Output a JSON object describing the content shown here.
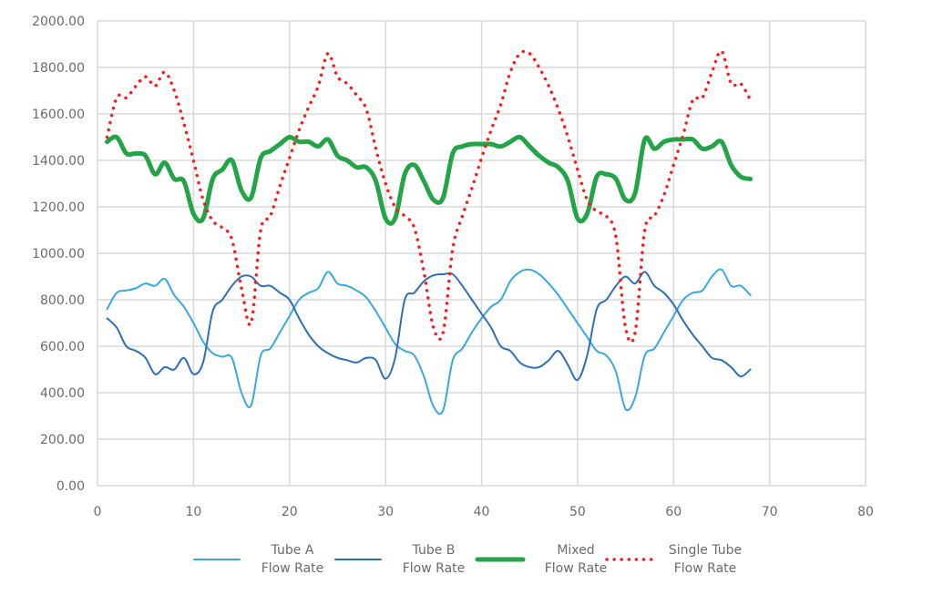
{
  "chart_data": {
    "type": "line",
    "title": "",
    "xlabel": "",
    "ylabel": "",
    "xlim": [
      0,
      80
    ],
    "ylim": [
      0,
      2000
    ],
    "x_ticks": [
      0,
      10,
      20,
      30,
      40,
      50,
      60,
      70,
      80
    ],
    "y_ticks": [
      "0.00",
      "200.00",
      "400.00",
      "600.00",
      "800.00",
      "1000.00",
      "1200.00",
      "1400.00",
      "1600.00",
      "1800.00",
      "2000.00"
    ],
    "y_tick_values": [
      0,
      200,
      400,
      600,
      800,
      1000,
      1200,
      1400,
      1600,
      1800,
      2000
    ],
    "grid": true,
    "legend_position": "bottom",
    "x_start": 1,
    "series": [
      {
        "name": "Tube A Flow Rate",
        "label_lines": [
          "Tube A",
          "Flow Rate"
        ],
        "color": "#3aa8e0",
        "style": "solid",
        "values": [
          760,
          830,
          840,
          850,
          870,
          860,
          890,
          820,
          770,
          700,
          620,
          570,
          555,
          550,
          400,
          345,
          560,
          590,
          660,
          730,
          800,
          830,
          850,
          920,
          870,
          860,
          840,
          810,
          750,
          680,
          610,
          580,
          560,
          470,
          340,
          325,
          540,
          590,
          660,
          720,
          770,
          800,
          880,
          920,
          930,
          910,
          870,
          820,
          760,
          700,
          640,
          580,
          560,
          490,
          330,
          380,
          560,
          590,
          660,
          730,
          800,
          830,
          840,
          900,
          930,
          860,
          860,
          820
        ]
      },
      {
        "name": "Tube B Flow Rate",
        "label_lines": [
          "Tube B",
          "Flow Rate"
        ],
        "color": "#2e6fb5",
        "style": "solid",
        "values": [
          720,
          680,
          600,
          580,
          550,
          480,
          510,
          500,
          550,
          480,
          530,
          750,
          800,
          860,
          900,
          900,
          860,
          860,
          830,
          800,
          720,
          650,
          600,
          570,
          550,
          540,
          530,
          550,
          540,
          460,
          550,
          800,
          830,
          880,
          905,
          910,
          910,
          860,
          800,
          740,
          680,
          600,
          580,
          530,
          510,
          510,
          540,
          580,
          520,
          455,
          560,
          760,
          800,
          860,
          900,
          870,
          920,
          860,
          830,
          780,
          710,
          650,
          600,
          550,
          540,
          510,
          470,
          500
        ]
      },
      {
        "name": "Mixed Flow Rate",
        "label_lines": [
          "Mixed",
          "Flow Rate"
        ],
        "color": "#22a447",
        "style": "thick",
        "values": [
          1480,
          1500,
          1430,
          1430,
          1420,
          1340,
          1390,
          1320,
          1310,
          1170,
          1150,
          1320,
          1360,
          1400,
          1270,
          1240,
          1410,
          1440,
          1470,
          1500,
          1480,
          1480,
          1460,
          1490,
          1420,
          1400,
          1370,
          1370,
          1310,
          1150,
          1150,
          1340,
          1380,
          1310,
          1230,
          1240,
          1430,
          1460,
          1470,
          1470,
          1470,
          1460,
          1480,
          1500,
          1460,
          1420,
          1390,
          1370,
          1310,
          1150,
          1170,
          1330,
          1340,
          1320,
          1230,
          1260,
          1490,
          1450,
          1480,
          1490,
          1490,
          1490,
          1450,
          1460,
          1480,
          1380,
          1330,
          1320
        ]
      },
      {
        "name": "Single Tube Flow Rate",
        "label_lines": [
          "Single Tube",
          "Flow Rate"
        ],
        "color": "#ff1a1a",
        "style": "dotted",
        "values": [
          1500,
          1670,
          1670,
          1720,
          1760,
          1720,
          1780,
          1700,
          1560,
          1400,
          1230,
          1140,
          1110,
          1060,
          850,
          700,
          1100,
          1160,
          1290,
          1410,
          1530,
          1630,
          1720,
          1860,
          1760,
          1730,
          1680,
          1620,
          1450,
          1300,
          1200,
          1160,
          1110,
          920,
          680,
          660,
          1020,
          1160,
          1280,
          1410,
          1530,
          1640,
          1780,
          1860,
          1860,
          1800,
          1720,
          1620,
          1500,
          1360,
          1230,
          1180,
          1160,
          1070,
          680,
          660,
          1100,
          1160,
          1250,
          1380,
          1510,
          1660,
          1670,
          1780,
          1870,
          1730,
          1730,
          1660
        ]
      }
    ]
  }
}
